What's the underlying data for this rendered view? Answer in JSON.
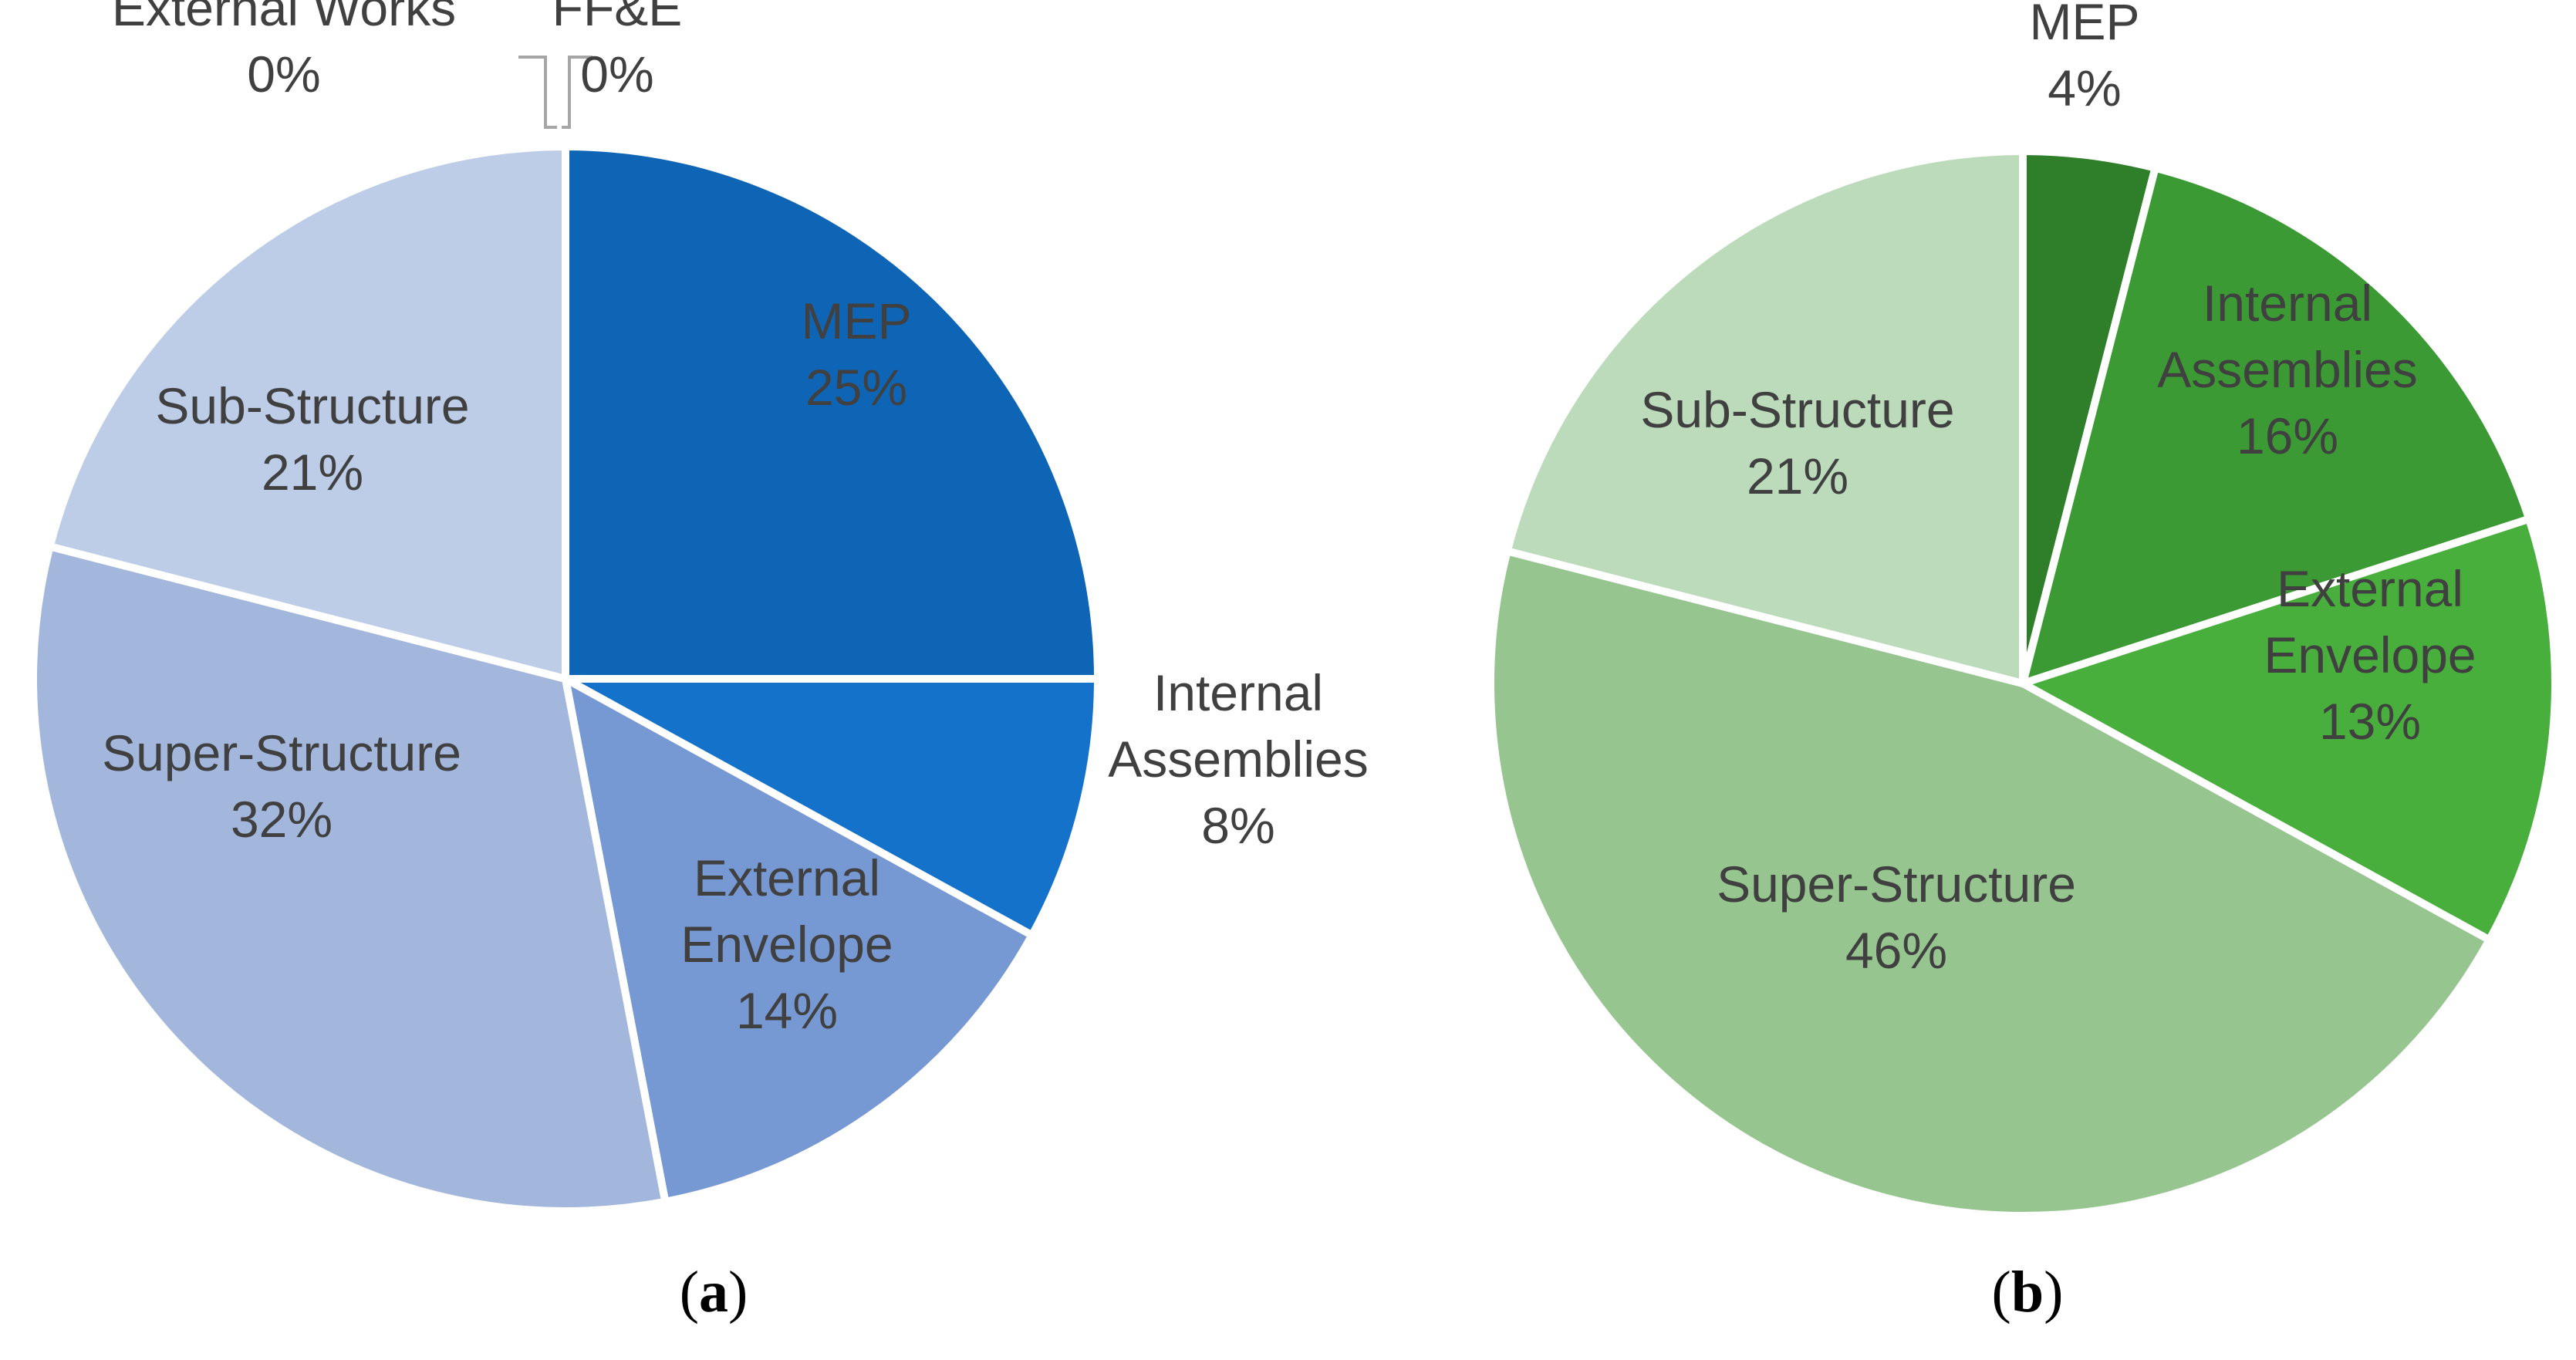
{
  "chart_data": [
    {
      "type": "pie",
      "caption": "a",
      "start_angle_deg": 0,
      "direction": "clockwise",
      "slices": [
        {
          "name": "MEP",
          "value": 25,
          "label_value": "25%",
          "color": "#0e65b6"
        },
        {
          "name": "Internal Assemblies",
          "value": 8,
          "label_value": "8%",
          "color": "#1572ca"
        },
        {
          "name": "External Envelope",
          "value": 14,
          "label_value": "14%",
          "color": "#7698d3"
        },
        {
          "name": "Super-Structure",
          "value": 32,
          "label_value": "32%",
          "color": "#a3b7dd"
        },
        {
          "name": "Sub-Structure",
          "value": 21,
          "label_value": "21%",
          "color": "#bdcde8"
        },
        {
          "name": "External Works",
          "value": 0,
          "label_value": "0%",
          "color": "#bdcde8"
        },
        {
          "name": "FF&E",
          "value": 0,
          "label_value": "0%",
          "color": "#bdcde8"
        }
      ]
    },
    {
      "type": "pie",
      "caption": "b",
      "start_angle_deg": 0,
      "direction": "clockwise",
      "slices": [
        {
          "name": "MEP",
          "value": 4,
          "label_value": "4%",
          "color": "#2f7f2a"
        },
        {
          "name": "Internal Assemblies",
          "value": 16,
          "label_value": "16%",
          "color": "#3b9a33"
        },
        {
          "name": "External Envelope",
          "value": 13,
          "label_value": "13%",
          "color": "#48af3c"
        },
        {
          "name": "Super-Structure",
          "value": 46,
          "label_value": "46%",
          "color": "#96c590"
        },
        {
          "name": "Sub-Structure",
          "value": 21,
          "label_value": "21%",
          "color": "#bcdbbb"
        }
      ]
    }
  ],
  "captions": {
    "a_open": "(",
    "a_letter": "a",
    "a_close": ")",
    "b_open": "(",
    "b_letter": "b",
    "b_close": ")"
  }
}
